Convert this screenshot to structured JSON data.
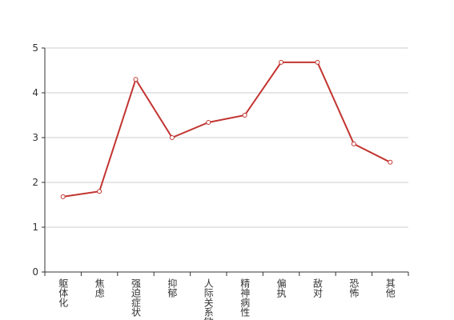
{
  "chart_data": {
    "type": "line",
    "categories": [
      "躯体化",
      "焦虑",
      "强迫症状",
      "抑郁",
      "人际关系敏感",
      "精神病性",
      "偏执",
      "敌对",
      "恐怖",
      "其他"
    ],
    "values": [
      1.68,
      1.8,
      4.3,
      3.0,
      3.34,
      3.5,
      4.68,
      4.68,
      2.86,
      2.45
    ],
    "color": "#c23531",
    "ylim": [
      0,
      5
    ],
    "yticks": [
      0,
      1,
      2,
      3,
      4,
      5
    ],
    "grid": true
  }
}
